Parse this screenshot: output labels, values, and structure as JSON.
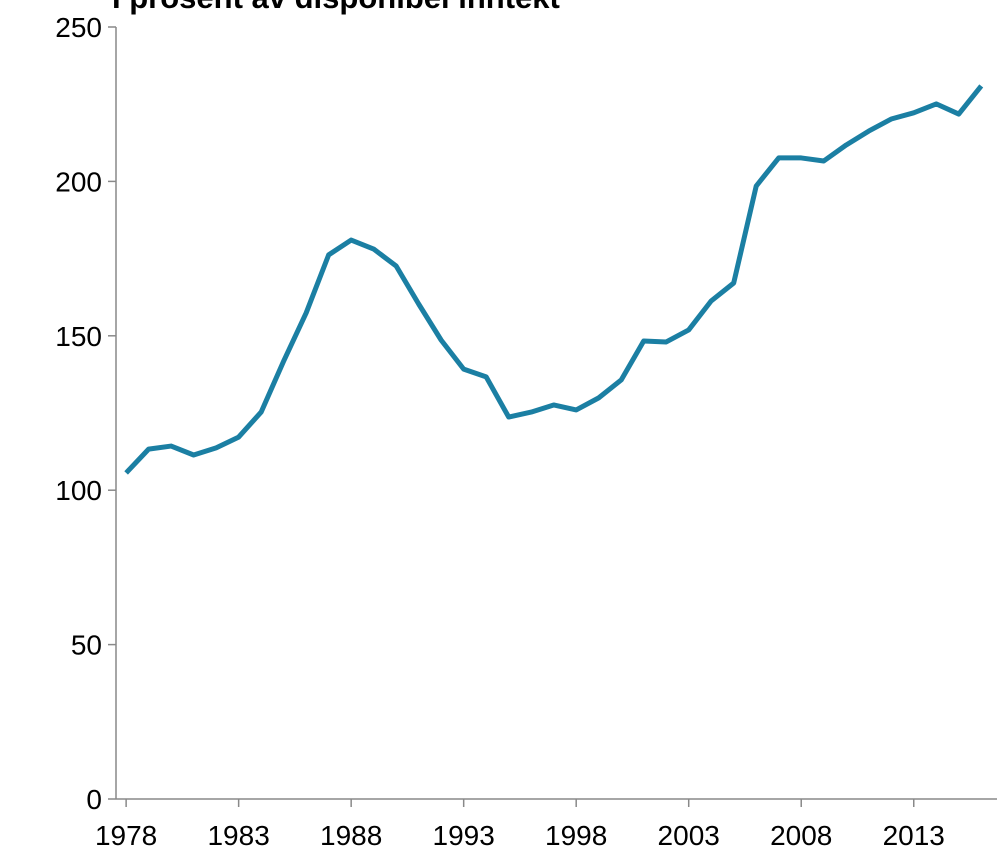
{
  "chart_data": {
    "type": "line",
    "title": "I prosent av disponibel inntekt",
    "x": [
      1978,
      1979,
      1980,
      1981,
      1982,
      1983,
      1984,
      1985,
      1986,
      1987,
      1988,
      1989,
      1990,
      1991,
      1992,
      1993,
      1994,
      1995,
      1996,
      1997,
      1998,
      1999,
      2000,
      2001,
      2002,
      2003,
      2004,
      2005,
      2006,
      2007,
      2008,
      2009,
      2010,
      2011,
      2012,
      2013,
      2014,
      2015,
      2016
    ],
    "series": [
      {
        "color": "#1b7fa3",
        "values": [
          105.6,
          113.3,
          114.3,
          111.4,
          113.7,
          117.2,
          125.3,
          141.8,
          157.4,
          176.2,
          181.0,
          178.1,
          172.6,
          160.3,
          148.6,
          139.2,
          136.7,
          123.7,
          125.3,
          127.6,
          126.0,
          129.9,
          135.7,
          148.3,
          148.0,
          151.9,
          161.3,
          167.1,
          198.5,
          207.6,
          207.6,
          206.6,
          211.8,
          216.3,
          220.2,
          222.2,
          225.1,
          221.8,
          230.9
        ]
      }
    ],
    "xlim": [
      1977.55,
      2016.7
    ],
    "xticks": [
      1978,
      1983,
      1988,
      1993,
      1998,
      2003,
      2008,
      2013
    ],
    "ylim": [
      0,
      250
    ],
    "yticks": [
      0,
      50,
      100,
      150,
      200,
      250
    ]
  }
}
